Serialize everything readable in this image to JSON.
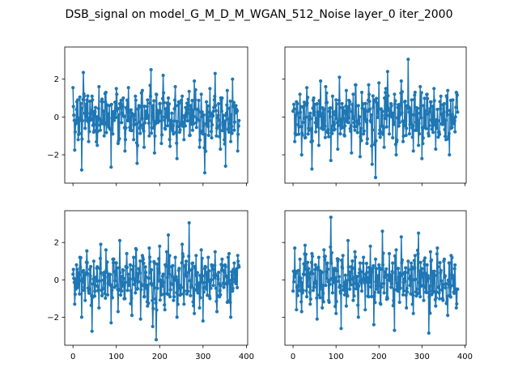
{
  "title": "DSB_signal on model_G_M_D_M_WGAN_512_Noise layer_0 iter_2000",
  "chart_data": [
    {
      "type": "line",
      "xlim": [
        -19,
        403
      ],
      "ylim": [
        -3.5,
        3.7
      ],
      "xticks": [
        0,
        100,
        200,
        300,
        400
      ],
      "yticks": [
        -2,
        0,
        2
      ],
      "x_tick_labels_visible": false,
      "y_tick_labels_visible": true,
      "grid": false,
      "legend": "none",
      "series": [
        {
          "color": "#1f77b4",
          "marker": "circle",
          "x_start": 0,
          "x_step": 1,
          "values": [
            1.55,
            -1.75,
            0.4,
            -1.2,
            1.05,
            -2.8,
            2.35,
            -0.6,
            0.9,
            -1.3,
            0.2,
            1.1,
            -0.8,
            0.5,
            -1.5,
            1.6,
            -0.2,
            0.8,
            -1.0,
            1.3,
            -0.4,
            0.6,
            -2.65,
            1.2,
            -0.9,
            0.3,
            1.5,
            -1.4,
            0.7,
            -0.3,
            1.0,
            -1.8,
            0.4,
            1.55,
            -0.7,
            0.2,
            -1.2,
            1.1,
            -2.45,
            0.6,
            -0.5,
            1.4,
            -1.6,
            0.3,
            0.9,
            -1.0,
            2.5,
            -0.8,
            0.5,
            -1.9,
            1.2,
            -0.3,
            0.7,
            -1.4,
            2.2,
            -0.6,
            0.4,
            1.0,
            -1.55,
            0.2,
            -0.9,
            1.6,
            -2.2,
            0.8,
            -0.4,
            1.1,
            -1.2,
            0.5,
            -0.2,
            1.35,
            -2.1,
            0.6,
            -0.7,
            1.9,
            -0.3,
            0.4,
            -1.6,
            1.2,
            -0.9,
            -2.95,
            0.8,
            -0.5,
            1.5,
            -1.1,
            0.3,
            2.3,
            -0.6,
            0.7,
            -1.7,
            1.0,
            -0.4,
            -2.6,
            1.4,
            -0.8,
            0.5,
            -1.3,
            2.0,
            -0.7,
            0.6,
            -1.8,
            0.9
          ],
          "visible_min": -2.95,
          "visible_max": 2.5,
          "approx_points": 384
        }
      ]
    },
    {
      "type": "line",
      "xlim": [
        -19,
        403
      ],
      "ylim": [
        -3.5,
        3.7
      ],
      "xticks": [
        0,
        100,
        200,
        300,
        400
      ],
      "yticks": [
        -2,
        0,
        2
      ],
      "x_tick_labels_visible": false,
      "y_tick_labels_visible": false,
      "grid": false,
      "legend": "none",
      "series": [
        {
          "color": "#1f77b4",
          "marker": "circle",
          "x_start": 0,
          "x_step": 1,
          "values": [
            0.3,
            -1.3,
            0.8,
            -0.4,
            1.2,
            -2.0,
            0.5,
            -1.1,
            1.55,
            -0.6,
            0.2,
            -2.75,
            1.0,
            -0.3,
            0.7,
            -1.5,
            1.9,
            -0.5,
            0.4,
            -1.2,
            1.6,
            -0.8,
            0.3,
            -2.3,
            1.1,
            -0.4,
            0.9,
            -1.7,
            2.1,
            -0.6,
            0.5,
            -1.0,
            1.4,
            -0.3,
            0.8,
            -1.9,
            1.2,
            -0.7,
            2.9,
            -0.5,
            0.6,
            -2.1,
            1.3,
            -0.9,
            0.4,
            -1.4,
            1.7,
            -0.2,
            -2.5,
            0.9,
            -3.2,
            0.6,
            1.8,
            -0.8,
            0.3,
            -1.6,
            1.5,
            -0.4,
            2.4,
            -0.9,
            0.7,
            -1.1,
            1.2,
            -2.0,
            0.5,
            -0.3,
            1.9,
            -1.3,
            0.8,
            -0.6,
            3.05,
            -0.4,
            0.9,
            -1.8,
            1.3,
            -0.7,
            0.4,
            -1.5,
            1.6,
            -2.2,
            0.6,
            -0.5,
            1.2,
            -1.0,
            0.8,
            -0.3,
            1.5,
            -1.7,
            0.4,
            -0.8,
            1.1,
            -0.4,
            0.7,
            -1.2,
            1.4,
            -2.0,
            0.5,
            -0.6,
            0.9,
            -0.2,
            1.3,
            0.2
          ],
          "visible_min": -3.2,
          "visible_max": 3.05,
          "approx_points": 384
        }
      ]
    },
    {
      "type": "line",
      "xlim": [
        -19,
        403
      ],
      "ylim": [
        -3.5,
        3.7
      ],
      "xticks": [
        0,
        100,
        200,
        300,
        400
      ],
      "yticks": [
        -2,
        0,
        2
      ],
      "x_tick_labels_visible": true,
      "y_tick_labels_visible": true,
      "grid": false,
      "legend": "none",
      "series": [
        {
          "color": "#1f77b4",
          "marker": "circle",
          "x_start": 0,
          "x_step": 1,
          "values": [
            0.3,
            -1.3,
            0.8,
            -0.4,
            1.2,
            -2.0,
            0.5,
            -1.1,
            1.55,
            -0.6,
            0.2,
            -2.75,
            1.0,
            -0.3,
            0.7,
            -1.5,
            1.9,
            -0.5,
            0.4,
            -1.2,
            1.6,
            -0.8,
            0.3,
            -2.3,
            1.1,
            -0.4,
            0.9,
            -1.7,
            2.1,
            -0.6,
            0.5,
            -1.0,
            1.4,
            -0.3,
            0.8,
            -1.9,
            1.2,
            -0.7,
            2.9,
            -0.5,
            0.6,
            -2.1,
            1.3,
            -0.9,
            0.4,
            -1.4,
            1.7,
            -0.2,
            -2.5,
            0.9,
            -3.2,
            0.6,
            1.8,
            -0.8,
            0.3,
            -1.6,
            1.5,
            -0.4,
            2.4,
            -0.9,
            0.7,
            -1.1,
            1.2,
            -2.0,
            0.5,
            -0.3,
            1.9,
            -1.3,
            0.8,
            -0.6,
            3.05,
            -0.4,
            0.9,
            -1.8,
            1.3,
            -0.7,
            0.4,
            -1.5,
            1.6,
            -2.2,
            0.6,
            -0.5,
            1.2,
            -1.0,
            0.8,
            -0.3,
            1.5,
            -1.7,
            0.4,
            -0.8,
            1.1,
            -0.4,
            0.7,
            -1.2,
            1.4,
            -2.0,
            0.5,
            -0.6,
            0.9,
            -0.2,
            1.3,
            0.2
          ],
          "visible_min": -3.2,
          "visible_max": 3.05,
          "approx_points": 384
        }
      ]
    },
    {
      "type": "line",
      "xlim": [
        -19,
        403
      ],
      "ylim": [
        -3.5,
        3.7
      ],
      "xticks": [
        0,
        100,
        200,
        300,
        400
      ],
      "yticks": [
        -2,
        0,
        2
      ],
      "x_tick_labels_visible": true,
      "y_tick_labels_visible": false,
      "grid": false,
      "legend": "none",
      "series": [
        {
          "color": "#1f77b4",
          "marker": "circle",
          "x_start": 0,
          "x_step": 1,
          "values": [
            -0.6,
            1.7,
            -1.6,
            0.5,
            1.1,
            -1.7,
            0.3,
            1.85,
            -0.9,
            0.6,
            -1.3,
            1.4,
            -0.4,
            0.8,
            -2.1,
            1.2,
            -0.6,
            0.4,
            -1.5,
            1.6,
            -0.3,
            0.9,
            -1.2,
            3.35,
            -0.7,
            0.5,
            -1.8,
            1.0,
            -0.4,
            -2.6,
            1.3,
            -0.8,
            0.6,
            -1.4,
            2.1,
            -0.5,
            0.7,
            -1.1,
            1.5,
            -0.2,
            -2.0,
            0.9,
            -0.6,
            1.2,
            -1.6,
            0.4,
            -0.9,
            1.8,
            -0.3,
            0.6,
            -2.4,
            1.1,
            -0.5,
            0.8,
            -1.3,
            2.6,
            -0.7,
            0.3,
            -1.0,
            1.4,
            -0.4,
            0.9,
            -2.7,
            1.6,
            -0.6,
            0.5,
            -1.2,
            2.3,
            -0.8,
            0.4,
            -1.5,
            1.0,
            -0.3,
            0.7,
            -1.8,
            1.3,
            -0.5,
            2.5,
            -0.9,
            0.6,
            -1.1,
            1.2,
            -0.4,
            0.8,
            -2.85,
            1.5,
            -0.6,
            0.3,
            -1.4,
            1.7,
            -0.7,
            0.5,
            -1.0,
            1.1,
            -0.2,
            -1.9,
            0.9,
            -0.5,
            1.3,
            -0.3,
            0.6,
            -1.5,
            0.4
          ],
          "visible_min": -2.85,
          "visible_max": 3.35,
          "approx_points": 384
        }
      ]
    }
  ]
}
